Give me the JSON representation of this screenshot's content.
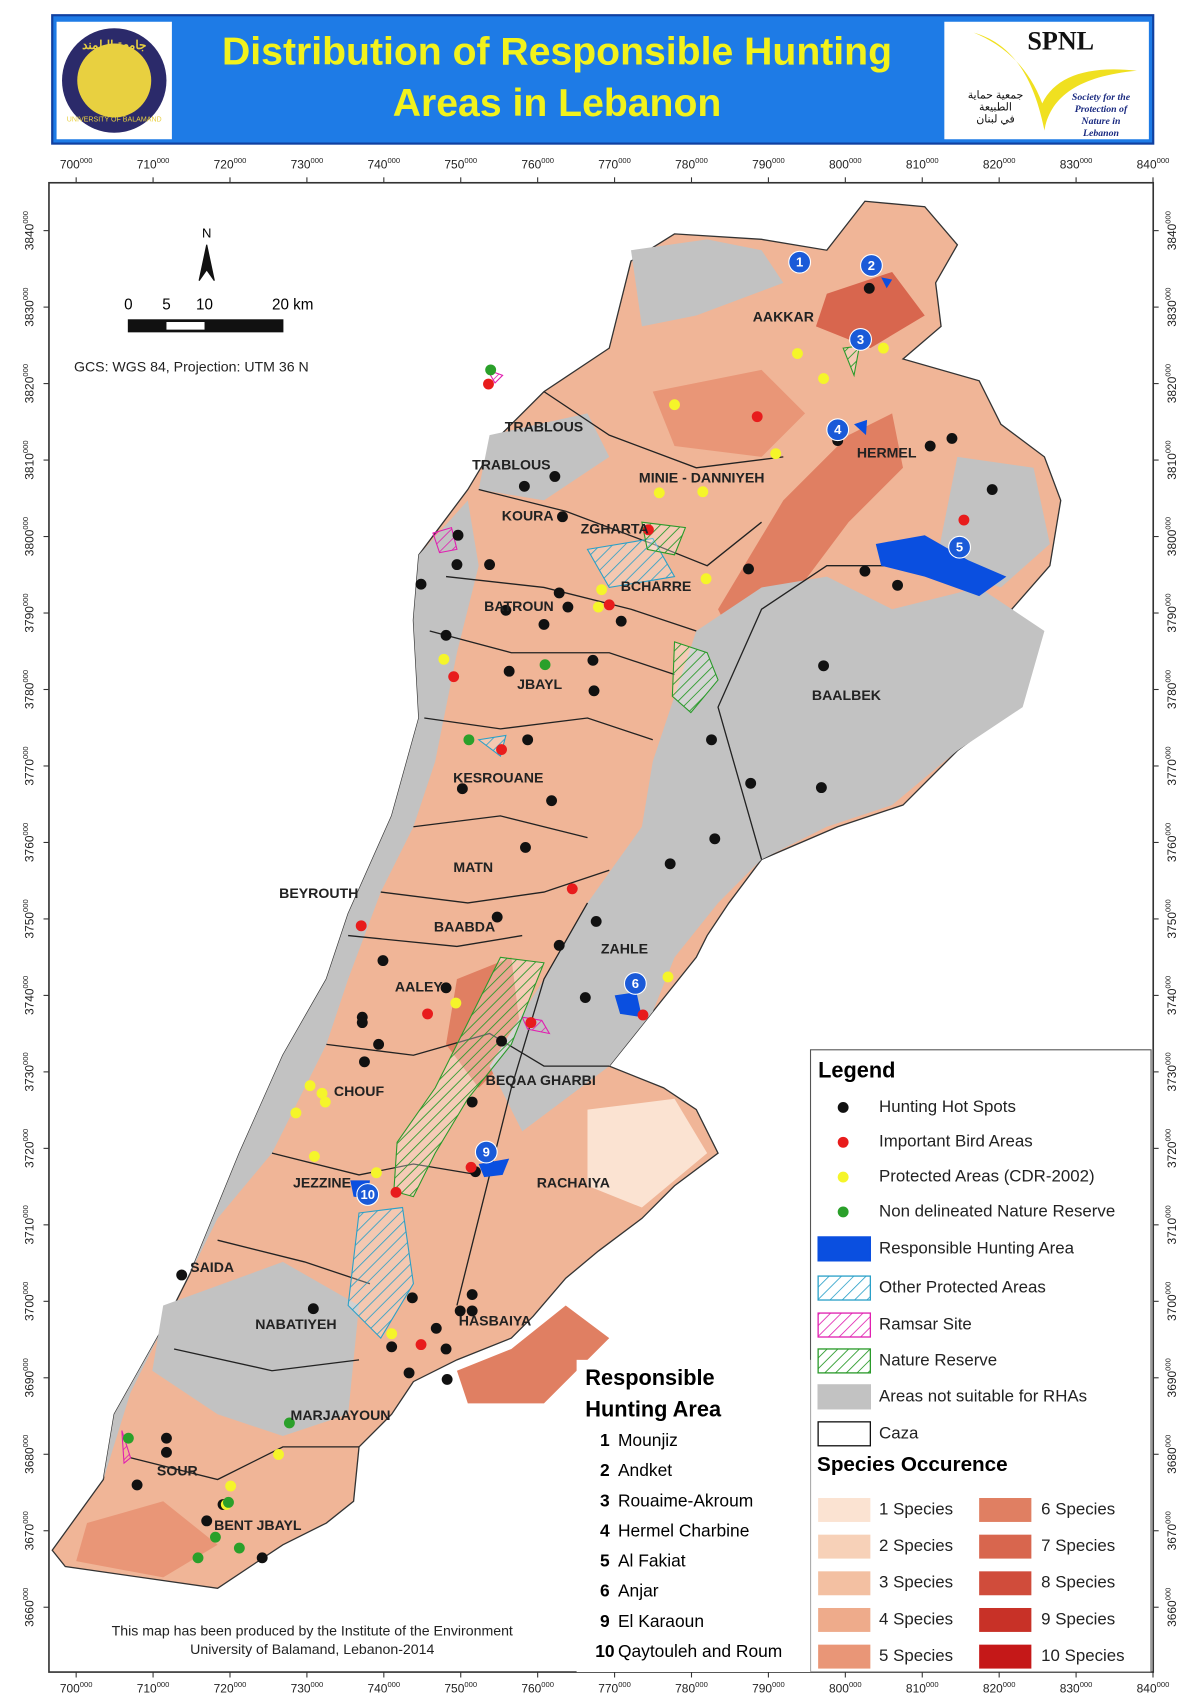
{
  "header": {
    "title_lines": [
      "Distribution of Responsible Hunting",
      "Areas in Lebanon"
    ],
    "left_logo": {
      "arabic": "جامعة البلمند",
      "english": "UNIVERSITY OF BALAMAND"
    },
    "right_logo": {
      "name": "SPNL",
      "arabic": [
        "جمعية حماية",
        "الطبيعة",
        "في لبنان"
      ],
      "english": [
        "Society for the",
        "Protection of",
        "Nature in",
        "Lebanon"
      ]
    }
  },
  "map": {
    "x_ticks": [
      "700000",
      "710000",
      "720000",
      "730000",
      "740000",
      "750000",
      "760000",
      "770000",
      "780000",
      "790000",
      "800000",
      "810000",
      "820000",
      "830000",
      "840000"
    ],
    "y_ticks": [
      "3840000",
      "3830000",
      "3820000",
      "3810000",
      "3800000",
      "3790000",
      "3780000",
      "3770000",
      "3760000",
      "3750000",
      "3740000",
      "3730000",
      "3720000",
      "3710000",
      "3700000",
      "3690000",
      "3680000",
      "3670000",
      "3660000"
    ],
    "north": "N",
    "scale_labels": [
      "0",
      "5",
      "10",
      "20 km"
    ],
    "projection": "GCS: WGS 84, Projection: UTM 36 N",
    "regions": [
      "AAKKAR",
      "TRABLOUS",
      "TRABLOUS",
      "MINIE - DANNIYEH",
      "HERMEL",
      "KOURA",
      "ZGHARTA",
      "BCHARRE",
      "BATROUN",
      "JBAYL",
      "BAALBEK",
      "KESROUANE",
      "MATN",
      "BEYROUTH",
      "BAABDA",
      "ZAHLE",
      "AALEY",
      "CHOUF",
      "BEQAA GHARBI",
      "RACHAIYA",
      "JEZZINE",
      "SAIDA",
      "NABATIYEH",
      "HASBAIYA",
      "MARJAAYOUN",
      "SOUR",
      "BENT JBAYL"
    ],
    "rha_markers": [
      "1",
      "2",
      "3",
      "4",
      "5",
      "6",
      "9",
      "10"
    ]
  },
  "legend": {
    "title": "Legend",
    "items": [
      "Hunting Hot Spots",
      "Important Bird Areas",
      "Protected Areas (CDR-2002)",
      "Non delineated Nature Reserve",
      "Responsible Hunting Area",
      "Other Protected Areas",
      "Ramsar Site",
      "Nature Reserve",
      "Areas not suitable for RHAs",
      "Caza"
    ],
    "species_title": "Species Occurence",
    "species": [
      "1 Species",
      "2 Species",
      "3 Species",
      "4 Species",
      "5 Species",
      "6 Species",
      "7 Species",
      "8 Species",
      "9 Species",
      "10 Species"
    ]
  },
  "rha_list": {
    "title_lines": [
      "Responsible",
      "Hunting Area"
    ],
    "items": [
      {
        "number": "1",
        "name": "Mounjiz"
      },
      {
        "number": "2",
        "name": "Andket"
      },
      {
        "number": "3",
        "name": "Rouaime-Akroum"
      },
      {
        "number": "4",
        "name": "Hermel Charbine"
      },
      {
        "number": "5",
        "name": " Al Fakiat"
      },
      {
        "number": "6",
        "name": "Anjar"
      },
      {
        "number": "9",
        "name": "El Karaoun"
      },
      {
        "number": "10",
        "name": "Qaytouleh and Roum"
      }
    ]
  },
  "footer": [
    "This map has been produced by the Institute of the Environment",
    "University of Balamand, Lebanon-2014"
  ]
}
